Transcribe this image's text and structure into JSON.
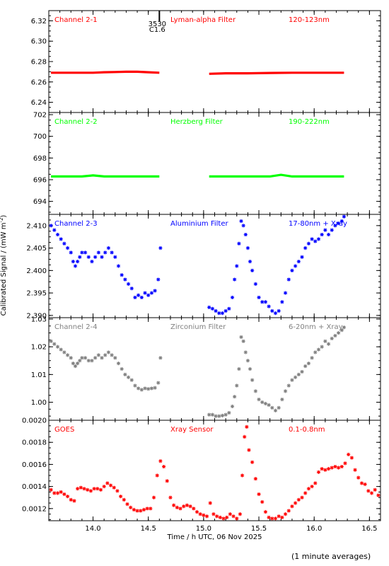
{
  "figure": {
    "xlabel": "Time / h UTC, 06 Nov 2025",
    "ylabel": "Calibrated Signal / (mW m",
    "ylabel_sup": "-2",
    "ylabel_end": ")",
    "note": "(1 minute averages)",
    "marker_label_top": "3530",
    "marker_label_bottom": "C1.6"
  },
  "chart_data": [
    {
      "type": "line",
      "title": "Channel 2-1",
      "filter": "Lyman-alpha Filter",
      "band": "120-123nm",
      "color": "#ff0000",
      "marker": "line",
      "ylim": [
        6.23,
        6.33
      ],
      "yticks": [
        6.24,
        6.26,
        6.28,
        6.3,
        6.32
      ],
      "ytick_labels": [
        "6.24",
        "6.26",
        "6.28",
        "6.30",
        "6.32"
      ],
      "series": [
        {
          "x": [
            13.62,
            13.7,
            13.8,
            13.9,
            14.0,
            14.1,
            14.2,
            14.3,
            14.4,
            14.5,
            14.6,
            null,
            15.05,
            15.2,
            15.4,
            15.6,
            15.8,
            16.0,
            16.2,
            16.27
          ],
          "values": [
            6.269,
            6.269,
            6.269,
            6.269,
            6.269,
            6.2695,
            6.2697,
            6.27,
            6.27,
            6.2695,
            6.269,
            null,
            6.268,
            6.2685,
            6.2685,
            6.2688,
            6.269,
            6.269,
            6.269,
            6.269
          ]
        }
      ]
    },
    {
      "type": "line",
      "title": "Channel 2-2",
      "filter": "Herzberg Filter",
      "band": "190-222nm",
      "color": "#00ff00",
      "marker": "line",
      "ylim": [
        692.8,
        702.2
      ],
      "yticks": [
        694,
        696,
        698,
        700,
        702
      ],
      "ytick_labels": [
        "694",
        "696",
        "698",
        "700",
        "702"
      ],
      "series": [
        {
          "x": [
            13.62,
            13.7,
            13.8,
            13.9,
            14.0,
            14.1,
            14.2,
            14.3,
            14.4,
            14.5,
            14.6,
            null,
            15.05,
            15.2,
            15.4,
            15.6,
            15.7,
            15.8,
            16.0,
            16.2,
            16.27
          ],
          "values": [
            696.3,
            696.3,
            696.3,
            696.3,
            696.4,
            696.3,
            696.3,
            696.3,
            696.3,
            696.3,
            696.3,
            null,
            696.3,
            696.3,
            696.3,
            696.3,
            696.45,
            696.3,
            696.3,
            696.3,
            696.3
          ]
        }
      ]
    },
    {
      "type": "scatter",
      "title": "Channel 2-3",
      "filter": "Aluminium Filter",
      "band": "17-80nm + Xray",
      "color": "#0000ff",
      "marker": "star",
      "ylim": [
        2.3895,
        2.4125
      ],
      "yticks": [
        2.39,
        2.395,
        2.4,
        2.405,
        2.41
      ],
      "ytick_labels": [
        "2.390",
        "2.395",
        "2.400",
        "2.405",
        "2.410"
      ],
      "series": [
        {
          "x": [
            13.62,
            13.65,
            13.68,
            13.71,
            13.74,
            13.77,
            13.8,
            13.82,
            13.84,
            13.86,
            13.88,
            13.9,
            13.93,
            13.96,
            13.99,
            14.02,
            14.05,
            14.08,
            14.11,
            14.14,
            14.17,
            14.2,
            14.23,
            14.26,
            14.29,
            14.32,
            14.35,
            14.38,
            14.41,
            14.44,
            14.47,
            14.5,
            14.53,
            14.56,
            14.59,
            14.61,
            15.05,
            15.08,
            15.11,
            15.14,
            15.17,
            15.2,
            15.23,
            15.26,
            15.28,
            15.3,
            15.32,
            15.34,
            15.36,
            15.38,
            15.4,
            15.42,
            15.44,
            15.47,
            15.5,
            15.53,
            15.56,
            15.59,
            15.62,
            15.65,
            15.68,
            15.71,
            15.74,
            15.77,
            15.8,
            15.83,
            15.86,
            15.89,
            15.92,
            15.95,
            15.98,
            16.01,
            16.04,
            16.07,
            16.1,
            16.13,
            16.16,
            16.19,
            16.22,
            16.25,
            16.27
          ],
          "values": [
            2.41,
            2.409,
            2.408,
            2.407,
            2.406,
            2.405,
            2.404,
            2.402,
            2.401,
            2.402,
            2.403,
            2.404,
            2.404,
            2.403,
            2.402,
            2.403,
            2.404,
            2.403,
            2.404,
            2.405,
            2.404,
            2.403,
            2.401,
            2.399,
            2.398,
            2.397,
            2.396,
            2.394,
            2.3945,
            2.394,
            2.395,
            2.3945,
            2.395,
            2.3955,
            2.398,
            2.405,
            2.3918,
            2.3915,
            2.391,
            2.3905,
            2.3905,
            2.391,
            2.3915,
            2.394,
            2.398,
            2.401,
            2.406,
            2.411,
            2.41,
            2.408,
            2.405,
            2.402,
            2.4,
            2.397,
            2.394,
            2.393,
            2.393,
            2.392,
            2.391,
            2.3905,
            2.391,
            2.393,
            2.395,
            2.398,
            2.4,
            2.401,
            2.402,
            2.403,
            2.405,
            2.406,
            2.407,
            2.4065,
            2.407,
            2.408,
            2.409,
            2.408,
            2.409,
            2.41,
            2.4105,
            2.411,
            2.412
          ]
        }
      ]
    },
    {
      "type": "scatter",
      "title": "Channel 2-4",
      "filter": "Zirconium Filter",
      "band": "6-20nm + Xray",
      "color": "#808080",
      "marker": "star",
      "ylim": [
        0.9935,
        1.0305
      ],
      "yticks": [
        1.0,
        1.01,
        1.02,
        1.03
      ],
      "ytick_labels": [
        "1.00",
        "1.01",
        "1.02",
        "1.03"
      ],
      "series": [
        {
          "x": [
            13.62,
            13.65,
            13.68,
            13.71,
            13.74,
            13.77,
            13.8,
            13.82,
            13.84,
            13.86,
            13.88,
            13.9,
            13.93,
            13.96,
            13.99,
            14.02,
            14.05,
            14.08,
            14.11,
            14.14,
            14.17,
            14.2,
            14.23,
            14.26,
            14.29,
            14.32,
            14.35,
            14.38,
            14.41,
            14.44,
            14.47,
            14.5,
            14.53,
            14.56,
            14.59,
            14.61,
            15.05,
            15.08,
            15.11,
            15.14,
            15.17,
            15.2,
            15.23,
            15.26,
            15.28,
            15.3,
            15.32,
            15.34,
            15.36,
            15.38,
            15.4,
            15.42,
            15.44,
            15.47,
            15.5,
            15.53,
            15.56,
            15.59,
            15.62,
            15.65,
            15.68,
            15.71,
            15.74,
            15.77,
            15.8,
            15.83,
            15.86,
            15.89,
            15.92,
            15.95,
            15.98,
            16.01,
            16.04,
            16.07,
            16.1,
            16.13,
            16.16,
            16.19,
            16.22,
            16.25,
            16.27
          ],
          "values": [
            1.022,
            1.021,
            1.02,
            1.019,
            1.018,
            1.017,
            1.016,
            1.014,
            1.013,
            1.014,
            1.015,
            1.016,
            1.016,
            1.015,
            1.015,
            1.016,
            1.017,
            1.016,
            1.017,
            1.018,
            1.017,
            1.016,
            1.014,
            1.012,
            1.01,
            1.009,
            1.008,
            1.006,
            1.005,
            1.0045,
            1.005,
            1.0048,
            1.005,
            1.0052,
            1.007,
            1.016,
            0.9955,
            0.9955,
            0.995,
            0.995,
            0.9952,
            0.9955,
            0.9962,
            0.9985,
            1.002,
            1.006,
            1.012,
            1.0235,
            1.022,
            1.018,
            1.015,
            1.012,
            1.008,
            1.004,
            1.001,
            1.0,
            0.9995,
            0.999,
            0.998,
            0.997,
            0.998,
            1.001,
            1.004,
            1.006,
            1.008,
            1.009,
            1.01,
            1.011,
            1.013,
            1.014,
            1.016,
            1.018,
            1.019,
            1.02,
            1.022,
            1.021,
            1.023,
            1.024,
            1.025,
            1.026,
            1.027
          ]
        }
      ]
    },
    {
      "type": "scatter",
      "title": "GOES",
      "filter": "Xray Sensor",
      "band": "0.1-0.8nm",
      "color": "#ff0000",
      "marker": "star",
      "ylim": [
        0.00109,
        0.002
      ],
      "yticks": [
        0.0012,
        0.0014,
        0.0016,
        0.0018,
        0.002
      ],
      "ytick_labels": [
        "0.0012",
        "0.0014",
        "0.0016",
        "0.0018",
        "0.0020"
      ],
      "series": [
        {
          "x": [
            13.62,
            13.65,
            13.68,
            13.71,
            13.74,
            13.77,
            13.8,
            13.83,
            13.86,
            13.89,
            13.92,
            13.95,
            13.98,
            14.01,
            14.04,
            14.07,
            14.1,
            14.13,
            14.16,
            14.19,
            14.22,
            14.25,
            14.28,
            14.31,
            14.34,
            14.37,
            14.4,
            14.43,
            14.46,
            14.49,
            14.52,
            14.55,
            14.58,
            14.61,
            14.64,
            14.67,
            14.7,
            14.73,
            14.76,
            14.79,
            14.82,
            14.85,
            14.88,
            14.91,
            14.94,
            14.97,
            15.0,
            15.03,
            15.06,
            15.09,
            15.12,
            15.15,
            15.18,
            15.21,
            15.24,
            15.27,
            15.3,
            15.33,
            15.35,
            15.37,
            15.39,
            15.41,
            15.44,
            15.47,
            15.5,
            15.53,
            15.56,
            15.59,
            15.62,
            15.65,
            15.68,
            15.71,
            15.74,
            15.77,
            15.8,
            15.83,
            15.86,
            15.89,
            15.92,
            15.95,
            15.98,
            16.01,
            16.04,
            16.07,
            16.1,
            16.13,
            16.16,
            16.19,
            16.22,
            16.25,
            16.28,
            16.31,
            16.34,
            16.37,
            16.4,
            16.43,
            16.46,
            16.49,
            16.52,
            16.55,
            16.58
          ],
          "values": [
            0.00137,
            0.00134,
            0.00134,
            0.00135,
            0.00133,
            0.00131,
            0.00128,
            0.00127,
            0.00138,
            0.00139,
            0.00138,
            0.00137,
            0.00136,
            0.00138,
            0.00138,
            0.00137,
            0.0014,
            0.00143,
            0.00141,
            0.00139,
            0.00136,
            0.00131,
            0.00128,
            0.00124,
            0.00121,
            0.00119,
            0.00118,
            0.00118,
            0.00119,
            0.0012,
            0.0012,
            0.0013,
            0.0015,
            0.00163,
            0.00158,
            0.00145,
            0.0013,
            0.00123,
            0.00121,
            0.0012,
            0.00122,
            0.00123,
            0.00122,
            0.0012,
            0.00117,
            0.00115,
            0.00114,
            0.00113,
            0.00125,
            0.00115,
            0.00113,
            0.00112,
            0.00111,
            0.00112,
            0.00115,
            0.00113,
            0.00111,
            0.00115,
            0.0015,
            0.00185,
            0.00194,
            0.00173,
            0.00162,
            0.00147,
            0.00133,
            0.00126,
            0.00117,
            0.00112,
            0.00111,
            0.00111,
            0.00113,
            0.00112,
            0.00115,
            0.00118,
            0.00122,
            0.00125,
            0.00128,
            0.0013,
            0.00134,
            0.00138,
            0.0014,
            0.00143,
            0.00153,
            0.00156,
            0.00155,
            0.00156,
            0.00157,
            0.00158,
            0.00157,
            0.00158,
            0.00161,
            0.00169,
            0.00166,
            0.00155,
            0.00148,
            0.00143,
            0.00142,
            0.00136,
            0.00134,
            0.00137,
            0.00132
          ]
        }
      ]
    }
  ],
  "xaxis": {
    "range": [
      13.6,
      16.6
    ],
    "ticks": [
      14.0,
      14.5,
      15.0,
      15.5,
      16.0,
      16.5
    ],
    "tick_labels": [
      "14.0",
      "14.5",
      "15.0",
      "15.5",
      "16.0",
      "16.5"
    ],
    "marker_x": 14.6
  }
}
